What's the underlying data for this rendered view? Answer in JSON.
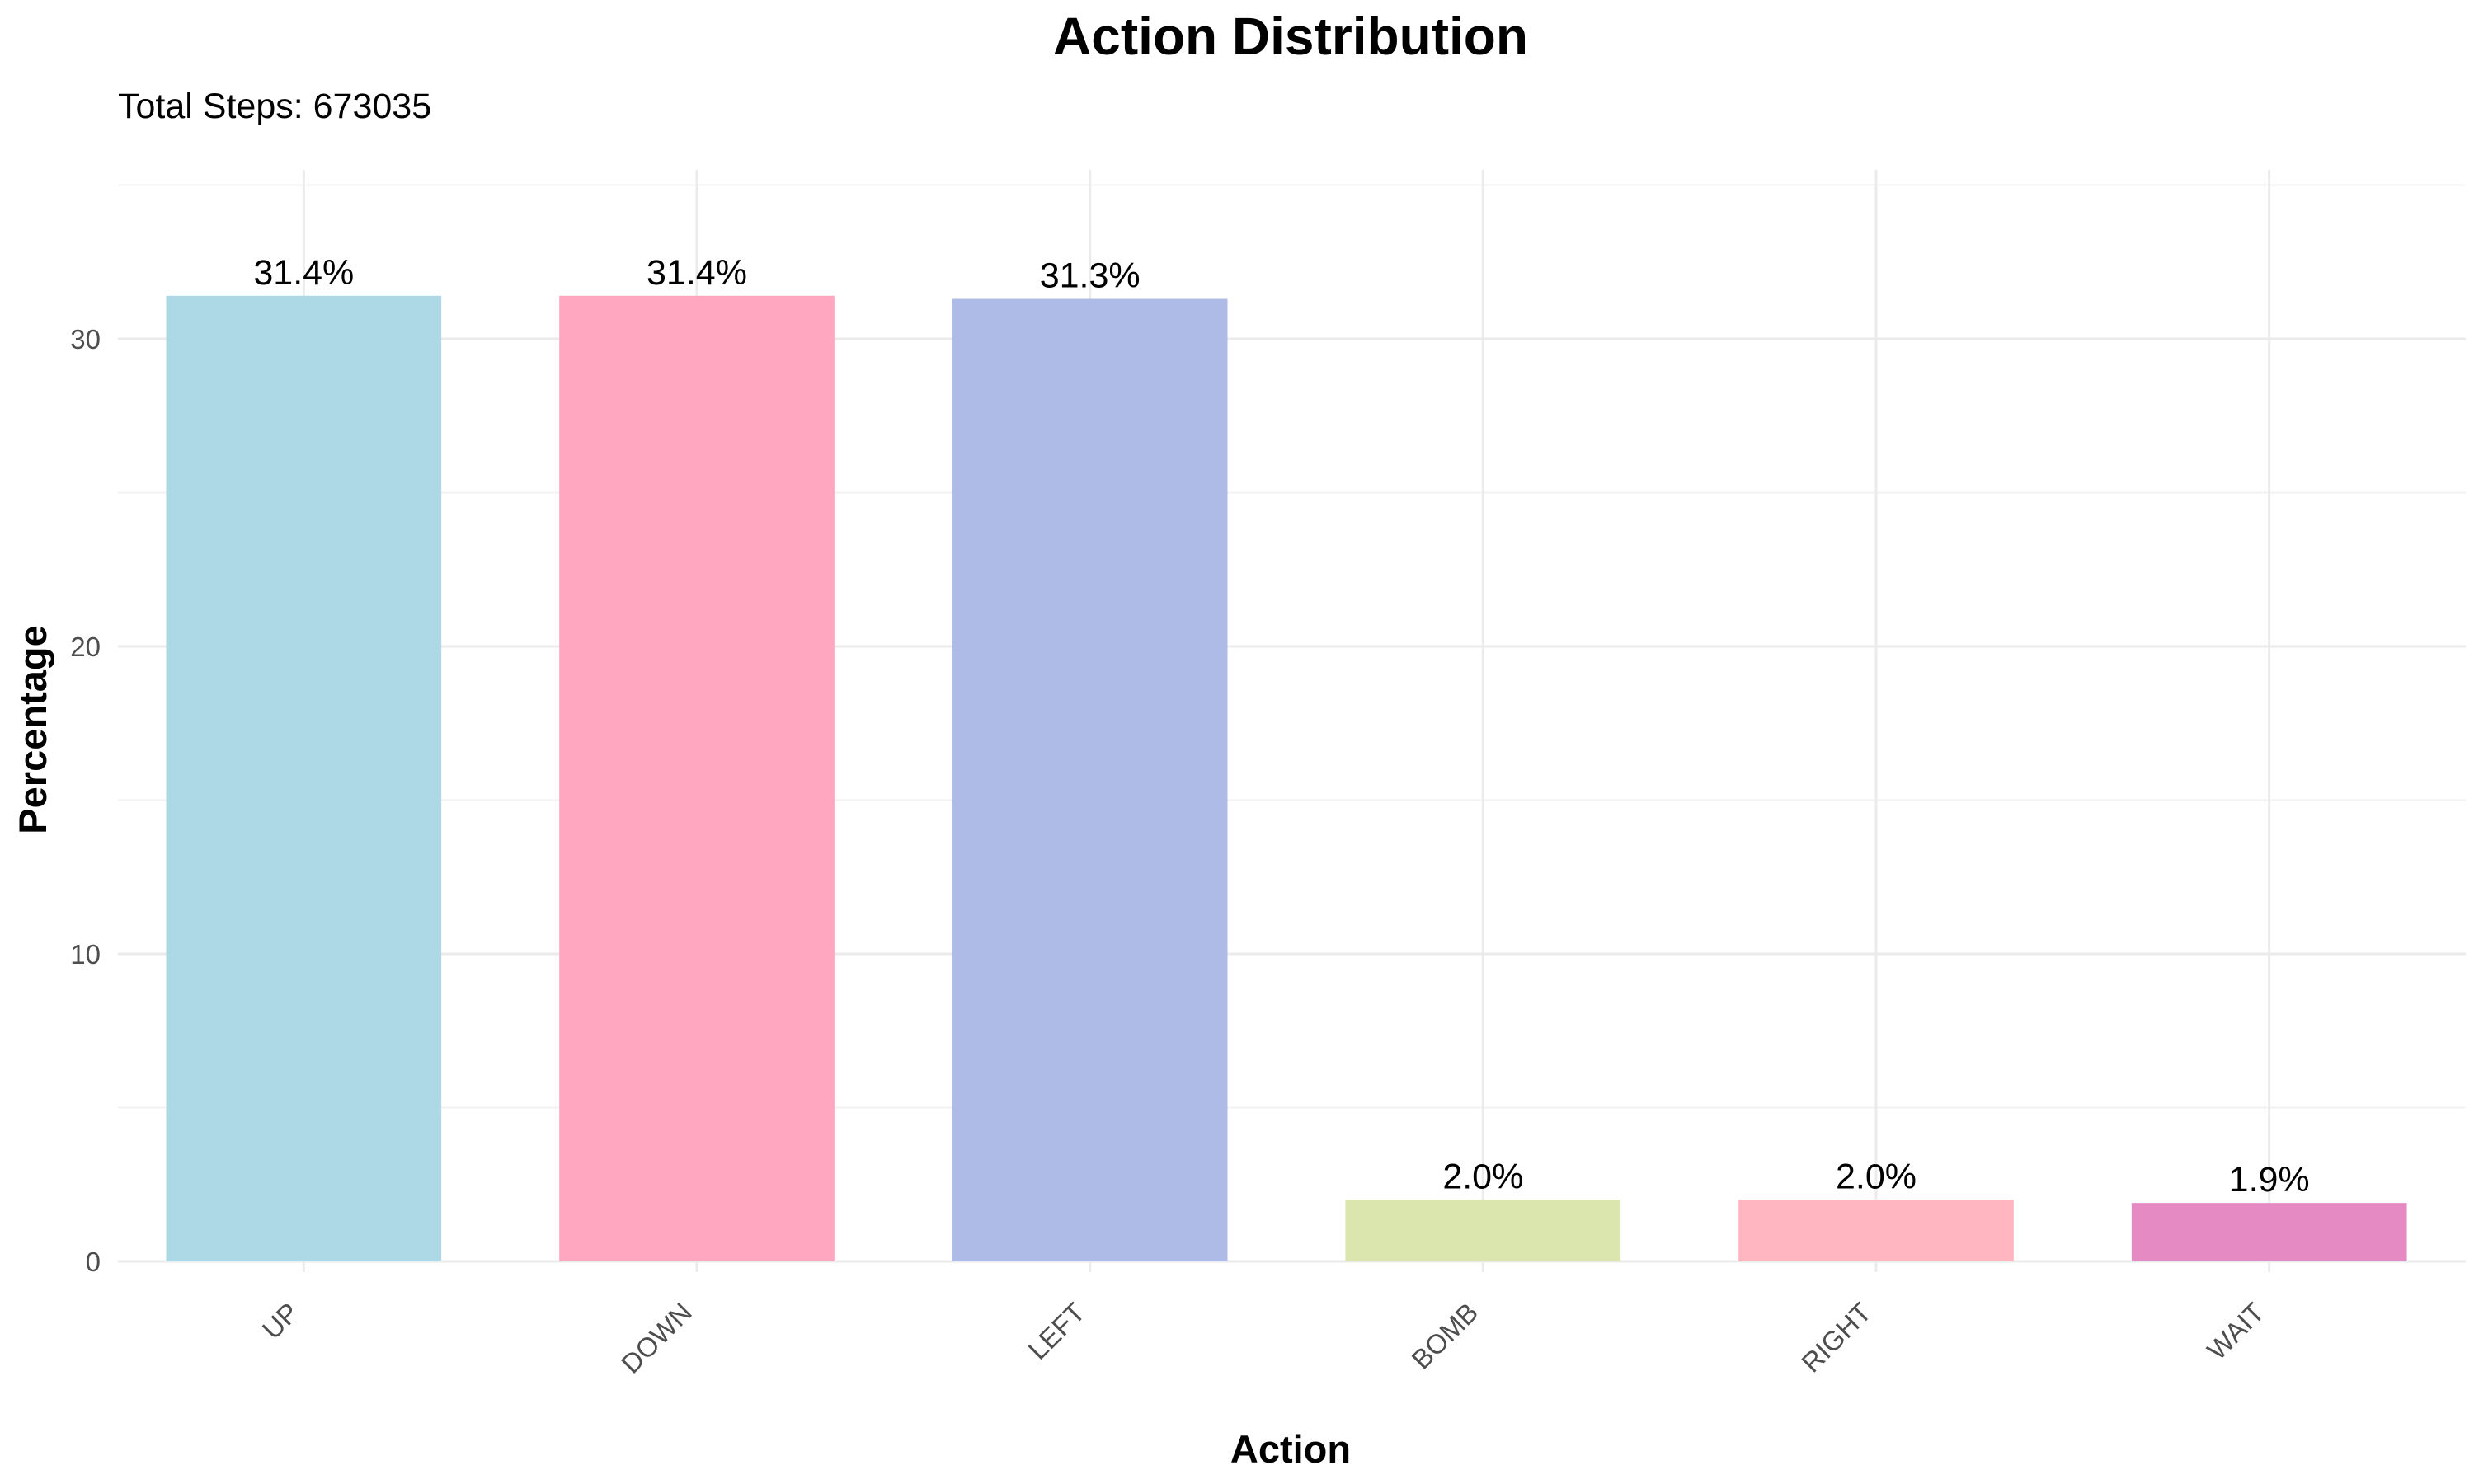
{
  "chart_data": {
    "type": "bar",
    "title": "Action Distribution",
    "subtitle": "Total Steps: 673035",
    "xlabel": "Action",
    "ylabel": "Percentage",
    "categories": [
      "UP",
      "DOWN",
      "LEFT",
      "BOMB",
      "RIGHT",
      "WAIT"
    ],
    "values": [
      31.4,
      31.4,
      31.3,
      2.0,
      2.0,
      1.9
    ],
    "value_labels": [
      "31.4%",
      "31.4%",
      "31.3%",
      "2.0%",
      "2.0%",
      "1.9%"
    ],
    "colors": [
      "#ADD8E6",
      "#FFA7C1",
      "#ADBBE6",
      "#DAE6AD",
      "#FFB6C1",
      "#E68AC4"
    ],
    "yticks": [
      0,
      10,
      20,
      30
    ],
    "ylim": [
      0,
      35.5
    ],
    "grid": true,
    "legend": "none"
  }
}
